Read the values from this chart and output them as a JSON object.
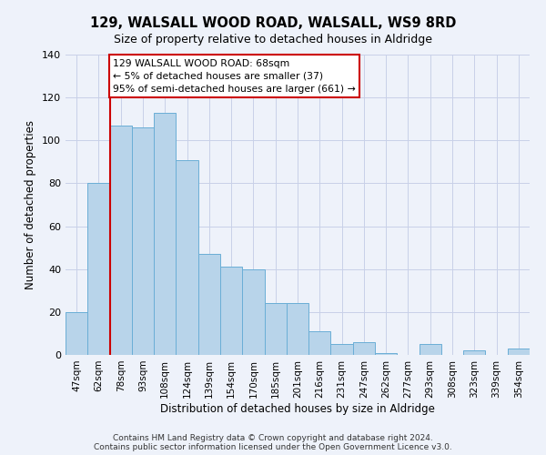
{
  "title": "129, WALSALL WOOD ROAD, WALSALL, WS9 8RD",
  "subtitle": "Size of property relative to detached houses in Aldridge",
  "xlabel": "Distribution of detached houses by size in Aldridge",
  "ylabel": "Number of detached properties",
  "bar_labels": [
    "47sqm",
    "62sqm",
    "78sqm",
    "93sqm",
    "108sqm",
    "124sqm",
    "139sqm",
    "154sqm",
    "170sqm",
    "185sqm",
    "201sqm",
    "216sqm",
    "231sqm",
    "247sqm",
    "262sqm",
    "277sqm",
    "293sqm",
    "308sqm",
    "323sqm",
    "339sqm",
    "354sqm"
  ],
  "bar_heights": [
    20,
    80,
    107,
    106,
    113,
    91,
    47,
    41,
    40,
    24,
    24,
    11,
    5,
    6,
    1,
    0,
    5,
    0,
    2,
    0,
    3
  ],
  "bar_color": "#b8d4ea",
  "bar_edge_color": "#6aaed6",
  "vline_color": "#cc0000",
  "ylim": [
    0,
    140
  ],
  "yticks": [
    0,
    20,
    40,
    60,
    80,
    100,
    120,
    140
  ],
  "annotation_title": "129 WALSALL WOOD ROAD: 68sqm",
  "annotation_line1": "← 5% of detached houses are smaller (37)",
  "annotation_line2": "95% of semi-detached houses are larger (661) →",
  "annotation_box_color": "#ffffff",
  "annotation_box_edge": "#cc0000",
  "footer_line1": "Contains HM Land Registry data © Crown copyright and database right 2024.",
  "footer_line2": "Contains public sector information licensed under the Open Government Licence v3.0.",
  "bg_color": "#eef2fa",
  "grid_color": "#c8d0e8"
}
